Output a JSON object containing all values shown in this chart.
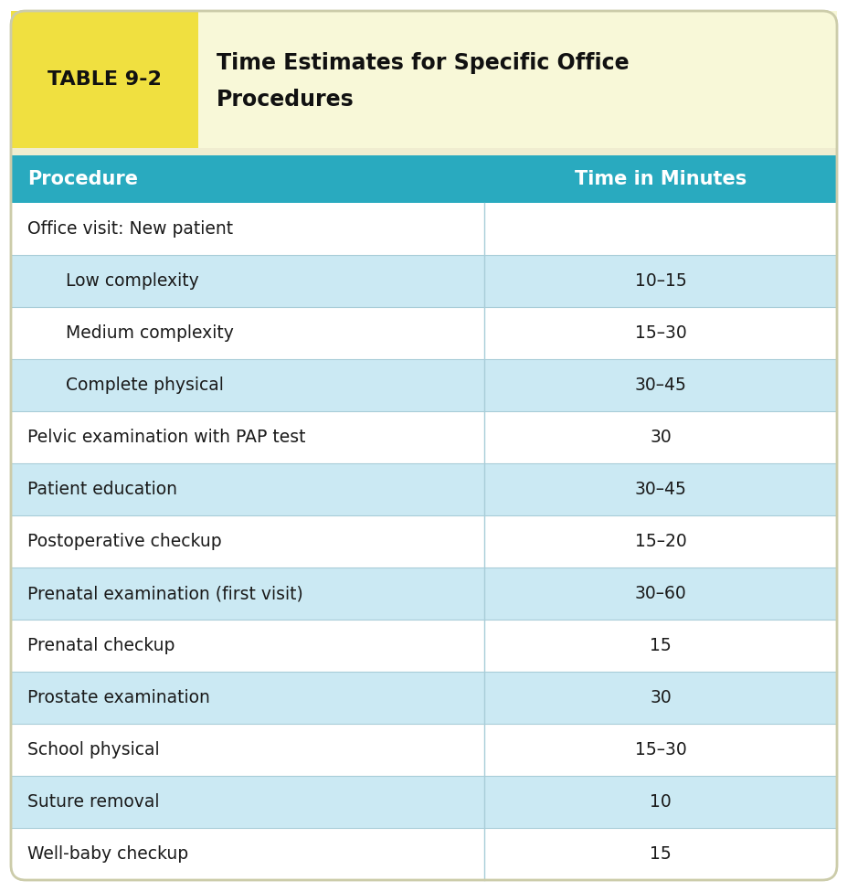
{
  "table_label": "TABLE 9-2",
  "table_title_line1": "Time Estimates for Specific Office",
  "table_title_line2": "Procedures",
  "col_headers": [
    "Procedure",
    "Time in Minutes"
  ],
  "rows": [
    {
      "procedure": "Office visit: New patient",
      "time": "",
      "indent": 0,
      "shaded": false
    },
    {
      "procedure": "Low complexity",
      "time": "10–15",
      "indent": 1,
      "shaded": true
    },
    {
      "procedure": "Medium complexity",
      "time": "15–30",
      "indent": 1,
      "shaded": false
    },
    {
      "procedure": "Complete physical",
      "time": "30–45",
      "indent": 1,
      "shaded": true
    },
    {
      "procedure": "Pelvic examination with PAP test",
      "time": "30",
      "indent": 0,
      "shaded": false
    },
    {
      "procedure": "Patient education",
      "time": "30–45",
      "indent": 0,
      "shaded": true
    },
    {
      "procedure": "Postoperative checkup",
      "time": "15–20",
      "indent": 0,
      "shaded": false
    },
    {
      "procedure": "Prenatal examination (first visit)",
      "time": "30–60",
      "indent": 0,
      "shaded": true
    },
    {
      "procedure": "Prenatal checkup",
      "time": "15",
      "indent": 0,
      "shaded": false
    },
    {
      "procedure": "Prostate examination",
      "time": "30",
      "indent": 0,
      "shaded": true
    },
    {
      "procedure": "School physical",
      "time": "15–30",
      "indent": 0,
      "shaded": false
    },
    {
      "procedure": "Suture removal",
      "time": "10",
      "indent": 0,
      "shaded": true
    },
    {
      "procedure": "Well-baby checkup",
      "time": "15",
      "indent": 0,
      "shaded": false
    }
  ],
  "color_yellow": "#F0E040",
  "color_cream": "#F8F8D8",
  "color_teal_header": "#29AABF",
  "color_teal_light": "#CBE9F3",
  "color_white": "#FFFFFF",
  "color_divider": "#A8CDD8",
  "outer_bg": "#F0EDD0",
  "border_color": "#CCCCAA",
  "fig_bg": "#FFFFFF"
}
